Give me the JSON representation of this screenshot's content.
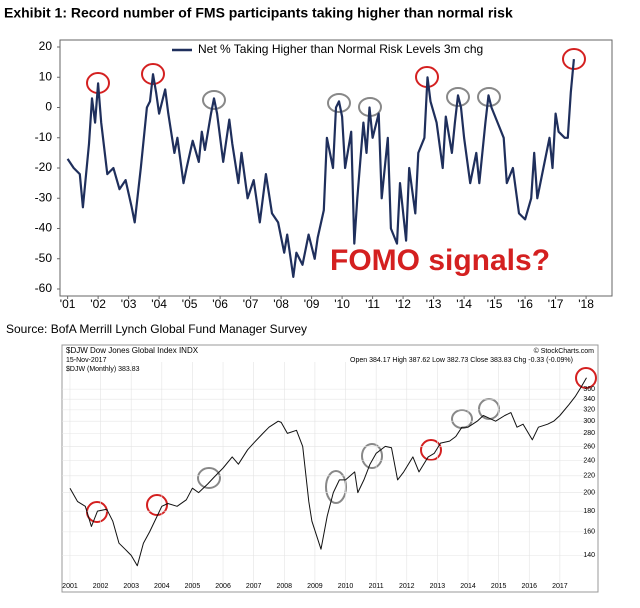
{
  "source": "Source: BofA Merrill Lynch Global Fund Manager Survey",
  "chart_data": [
    {
      "type": "line",
      "title": "Exhibit 1: Record number of FMS participants taking higher than normal risk",
      "annotations": [
        "FOMO signals?"
      ],
      "x": [
        2001.0,
        2001.2,
        2001.4,
        2001.5,
        2001.7,
        2001.8,
        2001.9,
        2002.0,
        2002.1,
        2002.3,
        2002.5,
        2002.7,
        2002.9,
        2003.1,
        2003.2,
        2003.4,
        2003.6,
        2003.7,
        2003.8,
        2003.9,
        2004.0,
        2004.2,
        2004.3,
        2004.5,
        2004.6,
        2004.8,
        2004.9,
        2005.1,
        2005.3,
        2005.4,
        2005.5,
        2005.7,
        2005.8,
        2005.9,
        2006.1,
        2006.3,
        2006.4,
        2006.6,
        2006.7,
        2006.9,
        2007.1,
        2007.3,
        2007.5,
        2007.7,
        2007.9,
        2008.1,
        2008.2,
        2008.4,
        2008.5,
        2008.7,
        2008.9,
        2009.1,
        2009.2,
        2009.4,
        2009.5,
        2009.7,
        2009.8,
        2009.9,
        2010.0,
        2010.1,
        2010.3,
        2010.4,
        2010.5,
        2010.7,
        2010.8,
        2010.9,
        2011.0,
        2011.2,
        2011.3,
        2011.5,
        2011.6,
        2011.8,
        2011.9,
        2012.1,
        2012.2,
        2012.4,
        2012.5,
        2012.7,
        2012.8,
        2012.9,
        2013.1,
        2013.3,
        2013.4,
        2013.6,
        2013.7,
        2013.8,
        2013.9,
        2014.0,
        2014.2,
        2014.4,
        2014.5,
        2014.7,
        2014.8,
        2014.9,
        2015.1,
        2015.3,
        2015.4,
        2015.6,
        2015.8,
        2016.0,
        2016.2,
        2016.3,
        2016.4,
        2016.6,
        2016.8,
        2016.9,
        2017.0,
        2017.1,
        2017.3,
        2017.4,
        2017.5,
        2017.6
      ],
      "series": [
        {
          "name": "Net % Taking Higher than Normal Risk Levels 3m chg",
          "color": "#1f2f5c",
          "values": [
            -17,
            -20,
            -22,
            -33,
            -12,
            3,
            -5,
            8,
            -5,
            -22,
            -20,
            -27,
            -24,
            -33,
            -38,
            -20,
            0,
            2,
            11,
            5,
            -2,
            6,
            -2,
            -15,
            -10,
            -25,
            -20,
            -11,
            -18,
            -8,
            -14,
            -2,
            3,
            -2,
            -18,
            -4,
            -12,
            -25,
            -15,
            -30,
            -24,
            -38,
            -22,
            -35,
            -38,
            -48,
            -42,
            -56,
            -48,
            -52,
            -42,
            -50,
            -43,
            -34,
            -10,
            -20,
            0,
            2,
            -3,
            -20,
            -8,
            -45,
            -30,
            -5,
            -15,
            0,
            -10,
            -2,
            -30,
            -10,
            -40,
            -45,
            -25,
            -44,
            -20,
            -35,
            -15,
            -10,
            10,
            2,
            -5,
            -20,
            -3,
            -15,
            -5,
            4,
            0,
            -10,
            -25,
            -15,
            -25,
            -5,
            4,
            0,
            -5,
            -10,
            -25,
            -20,
            -35,
            -37,
            -30,
            -15,
            -30,
            -20,
            -10,
            -20,
            -2,
            -8,
            -10,
            -10,
            5,
            16
          ]
        }
      ],
      "xlim": [
        2000.75,
        2018.85
      ],
      "xticks": [
        {
          "value": 2001,
          "label": "'01"
        },
        {
          "value": 2002,
          "label": "'02"
        },
        {
          "value": 2003,
          "label": "'03"
        },
        {
          "value": 2004,
          "label": "'04"
        },
        {
          "value": 2005,
          "label": "'05"
        },
        {
          "value": 2006,
          "label": "'06"
        },
        {
          "value": 2007,
          "label": "'07"
        },
        {
          "value": 2008,
          "label": "'08"
        },
        {
          "value": 2009,
          "label": "'09"
        },
        {
          "value": 2010,
          "label": "'10"
        },
        {
          "value": 2011,
          "label": "'11"
        },
        {
          "value": 2012,
          "label": "'12"
        },
        {
          "value": 2013,
          "label": "'13"
        },
        {
          "value": 2014,
          "label": "'14"
        },
        {
          "value": 2015,
          "label": "'15"
        },
        {
          "value": 2016,
          "label": "'16"
        },
        {
          "value": 2017,
          "label": "'17"
        },
        {
          "value": 2018,
          "label": "'18"
        }
      ],
      "ylim": [
        -60,
        20
      ],
      "yticks": [
        20,
        10,
        0,
        -10,
        -20,
        -30,
        -40,
        -50,
        -60
      ],
      "grid": false,
      "legend": "top"
    },
    {
      "type": "line",
      "title": "$DJW Dow Jones Global Index INDX",
      "subtitle": "15-Nov-2017",
      "quote": "Open 384.17  High 387.62  Low 382.73  Close 383.83  Chg -0.33 (-0.09%)",
      "credit": "© StockCharts.com",
      "x": [
        2001.0,
        2001.25,
        2001.5,
        2001.7,
        2001.9,
        2002.2,
        2002.4,
        2002.6,
        2002.8,
        2003.0,
        2003.2,
        2003.4,
        2003.6,
        2003.8,
        2004.0,
        2004.2,
        2004.5,
        2004.8,
        2005.0,
        2005.2,
        2005.5,
        2005.7,
        2006.0,
        2006.3,
        2006.5,
        2006.8,
        2007.0,
        2007.3,
        2007.5,
        2007.8,
        2007.9,
        2008.1,
        2008.4,
        2008.6,
        2008.8,
        2008.9,
        2009.2,
        2009.4,
        2009.6,
        2009.8,
        2010.0,
        2010.3,
        2010.4,
        2010.6,
        2010.8,
        2011.0,
        2011.3,
        2011.5,
        2011.7,
        2011.9,
        2012.2,
        2012.4,
        2012.7,
        2012.9,
        2013.1,
        2013.4,
        2013.6,
        2013.8,
        2014.0,
        2014.3,
        2014.5,
        2014.7,
        2014.9,
        2015.2,
        2015.4,
        2015.6,
        2015.8,
        2016.1,
        2016.3,
        2016.6,
        2016.8,
        2017.0,
        2017.3,
        2017.5,
        2017.7,
        2017.87
      ],
      "series": [
        {
          "name": "$DJW (Monthly) 383.83",
          "color": "#111111",
          "values": [
            205,
            190,
            185,
            165,
            180,
            182,
            170,
            150,
            145,
            140,
            132,
            150,
            160,
            172,
            185,
            188,
            185,
            192,
            205,
            200,
            210,
            218,
            230,
            245,
            235,
            255,
            265,
            280,
            290,
            300,
            298,
            280,
            285,
            260,
            190,
            170,
            145,
            175,
            200,
            215,
            215,
            225,
            200,
            215,
            235,
            250,
            260,
            258,
            215,
            225,
            245,
            225,
            245,
            250,
            265,
            268,
            275,
            290,
            290,
            300,
            310,
            305,
            300,
            310,
            315,
            290,
            295,
            270,
            290,
            295,
            300,
            310,
            330,
            345,
            365,
            384
          ]
        }
      ],
      "xlim": [
        2000.74,
        2018.18
      ],
      "xticks": [
        2001,
        2002,
        2003,
        2004,
        2005,
        2006,
        2007,
        2008,
        2009,
        2010,
        2011,
        2012,
        2013,
        2014,
        2015,
        2016,
        2017
      ],
      "ylim": [
        115,
        420
      ],
      "yticks": [
        140,
        160,
        180,
        200,
        220,
        240,
        260,
        280,
        300,
        320,
        340,
        360
      ],
      "yscale": "log",
      "grid": true
    }
  ]
}
